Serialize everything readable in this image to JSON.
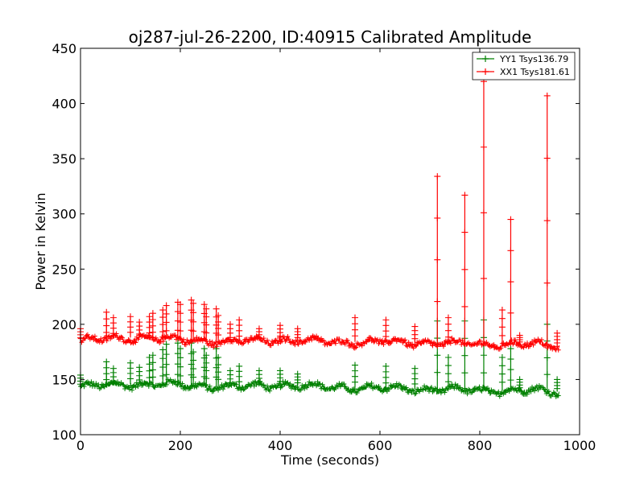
{
  "chart_data": {
    "type": "line",
    "title": "oj287-jul-26-2200, ID:40915 Calibrated Amplitude",
    "xlabel": "Time (seconds)",
    "ylabel": "Power in Kelvin",
    "xlim": [
      0,
      1000
    ],
    "ylim": [
      100,
      450
    ],
    "xticks": [
      "0",
      "200",
      "400",
      "600",
      "800",
      "1000"
    ],
    "yticks": [
      "100",
      "150",
      "200",
      "250",
      "300",
      "350",
      "400",
      "450"
    ],
    "legend_position": "top-right",
    "grid": false,
    "series": [
      {
        "name": "YY1 Tsys136.79",
        "color": "#008000",
        "baseline": [
          [
            0,
            143
          ],
          [
            100,
            146
          ],
          [
            200,
            145
          ],
          [
            300,
            143
          ],
          [
            400,
            145
          ],
          [
            500,
            143
          ],
          [
            600,
            142
          ],
          [
            700,
            141
          ],
          [
            800,
            140
          ],
          [
            900,
            140
          ],
          [
            960,
            139
          ]
        ],
        "spikes": [
          [
            0,
            154
          ],
          [
            52,
            166
          ],
          [
            66,
            160
          ],
          [
            100,
            165
          ],
          [
            118,
            161
          ],
          [
            138,
            170
          ],
          [
            145,
            172
          ],
          [
            165,
            177
          ],
          [
            172,
            182
          ],
          [
            195,
            183
          ],
          [
            200,
            178
          ],
          [
            222,
            183
          ],
          [
            226,
            175
          ],
          [
            248,
            178
          ],
          [
            252,
            172
          ],
          [
            272,
            178
          ],
          [
            276,
            170
          ],
          [
            300,
            158
          ],
          [
            318,
            162
          ],
          [
            358,
            158
          ],
          [
            400,
            158
          ],
          [
            435,
            155
          ],
          [
            550,
            163
          ],
          [
            612,
            162
          ],
          [
            670,
            160
          ],
          [
            715,
            203
          ],
          [
            737,
            170
          ],
          [
            770,
            203
          ],
          [
            808,
            204
          ],
          [
            845,
            170
          ],
          [
            862,
            178
          ],
          [
            880,
            150
          ],
          [
            935,
            200
          ],
          [
            955,
            150
          ]
        ]
      },
      {
        "name": "XX1 Tsys181.61",
        "color": "#ff0000",
        "baseline": [
          [
            0,
            185
          ],
          [
            100,
            188
          ],
          [
            200,
            186
          ],
          [
            300,
            184
          ],
          [
            400,
            186
          ],
          [
            500,
            184
          ],
          [
            600,
            184
          ],
          [
            700,
            183
          ],
          [
            800,
            182
          ],
          [
            900,
            182
          ],
          [
            960,
            180
          ]
        ],
        "spikes": [
          [
            0,
            196
          ],
          [
            52,
            211
          ],
          [
            66,
            206
          ],
          [
            100,
            207
          ],
          [
            118,
            202
          ],
          [
            138,
            207
          ],
          [
            145,
            210
          ],
          [
            165,
            213
          ],
          [
            172,
            217
          ],
          [
            195,
            220
          ],
          [
            200,
            218
          ],
          [
            222,
            222
          ],
          [
            226,
            219
          ],
          [
            248,
            218
          ],
          [
            252,
            214
          ],
          [
            272,
            214
          ],
          [
            276,
            208
          ],
          [
            300,
            200
          ],
          [
            318,
            204
          ],
          [
            358,
            196
          ],
          [
            400,
            199
          ],
          [
            435,
            196
          ],
          [
            550,
            206
          ],
          [
            612,
            204
          ],
          [
            670,
            198
          ],
          [
            715,
            334
          ],
          [
            737,
            206
          ],
          [
            770,
            317
          ],
          [
            808,
            420
          ],
          [
            845,
            213
          ],
          [
            862,
            295
          ],
          [
            880,
            190
          ],
          [
            935,
            407
          ],
          [
            955,
            192
          ]
        ]
      }
    ]
  }
}
